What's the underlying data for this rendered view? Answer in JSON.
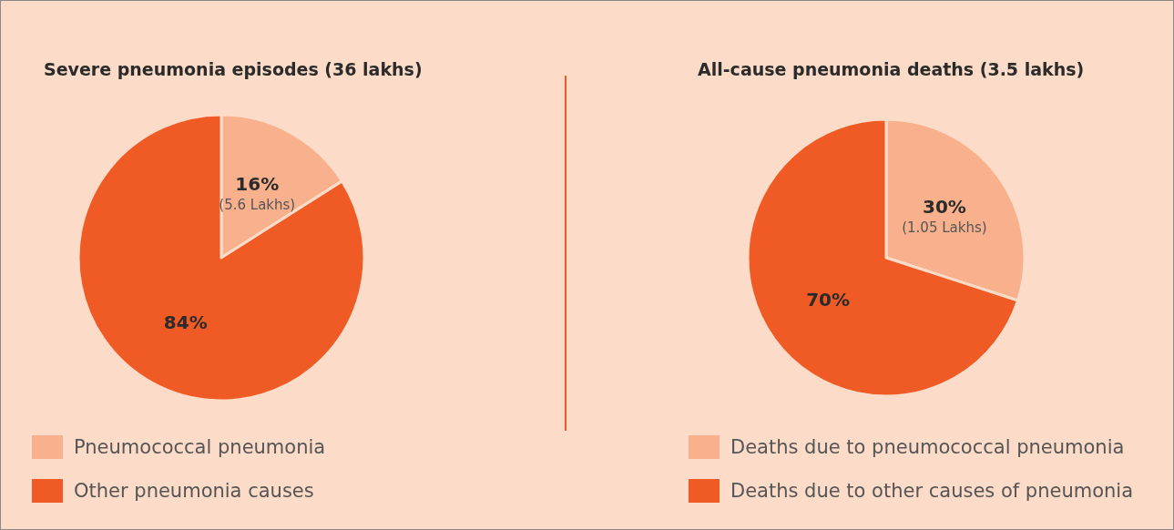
{
  "chart_data": [
    {
      "type": "pie",
      "title": "Severe pneumonia episodes (36 lakhs)",
      "categories": [
        "Pneumococcal pneumonia",
        "Other pneumonia causes"
      ],
      "values": [
        16,
        84
      ],
      "colors": [
        "#f9b08c",
        "#f05a24"
      ],
      "value_labels": [
        "16%\n(5.6 Lakhs)",
        "84%"
      ],
      "legend": "bottom left"
    },
    {
      "type": "pie",
      "title": "All-cause pneumonia deaths (3.5 lakhs)",
      "categories": [
        "Deaths due to pneumococcal pneumonia",
        "Deaths due to other causes of pneumonia"
      ],
      "values": [
        30,
        70
      ],
      "colors": [
        "#f9b08c",
        "#f05a24"
      ],
      "value_labels": [
        "30%\n(1.05 Lakhs)",
        "70%"
      ],
      "legend": "bottom"
    }
  ]
}
